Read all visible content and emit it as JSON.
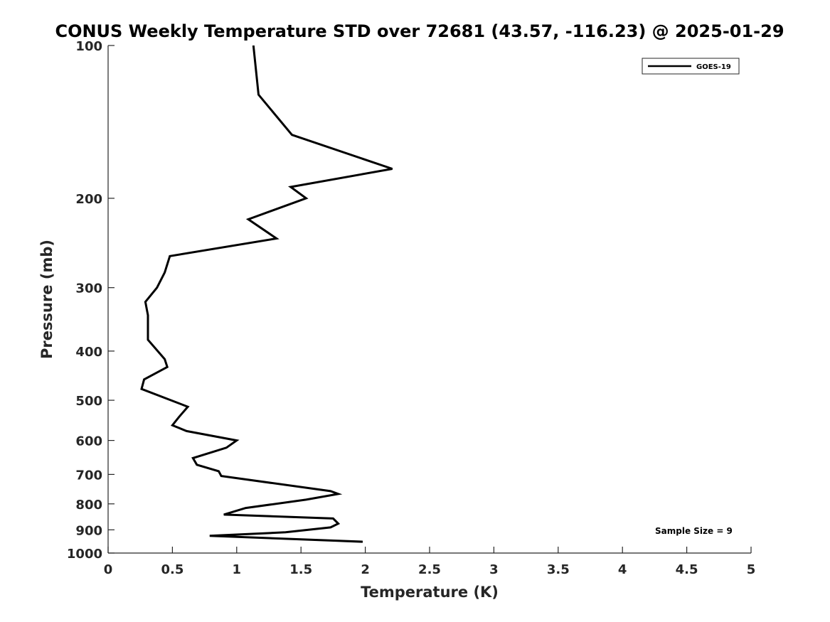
{
  "chart_data": {
    "type": "line",
    "title": "CONUS Weekly Temperature STD over 72681 (43.57, -116.23) @ 2025-01-29",
    "xlabel": "Temperature (K)",
    "ylabel": "Pressure (mb)",
    "xlim": [
      0,
      5
    ],
    "ylim": [
      100,
      1000
    ],
    "y_scale": "log",
    "y_reversed": true,
    "xticks": [
      "0",
      "0.5",
      "1",
      "1.5",
      "2",
      "2.5",
      "3",
      "3.5",
      "4",
      "4.5",
      "5"
    ],
    "yticks": [
      "100",
      "200",
      "300",
      "400",
      "500",
      "600",
      "700",
      "800",
      "900",
      "1000"
    ],
    "grid": false,
    "legend": {
      "position": "top-right",
      "entries": [
        "GOES-19"
      ]
    },
    "annotation": "Sample Size = 9",
    "series": [
      {
        "name": "GOES-19",
        "color": "#000000",
        "points": [
          [
            1.13,
            100
          ],
          [
            1.17,
            125
          ],
          [
            1.43,
            150
          ],
          [
            2.21,
            175
          ],
          [
            1.42,
            190
          ],
          [
            1.54,
            200
          ],
          [
            1.09,
            220
          ],
          [
            1.31,
            240
          ],
          [
            0.48,
            260
          ],
          [
            0.44,
            280
          ],
          [
            0.38,
            300
          ],
          [
            0.29,
            320
          ],
          [
            0.31,
            340
          ],
          [
            0.31,
            380
          ],
          [
            0.44,
            415
          ],
          [
            0.46,
            430
          ],
          [
            0.28,
            455
          ],
          [
            0.26,
            475
          ],
          [
            0.62,
            515
          ],
          [
            0.55,
            540
          ],
          [
            0.5,
            560
          ],
          [
            0.61,
            575
          ],
          [
            1.0,
            600
          ],
          [
            0.92,
            620
          ],
          [
            0.66,
            650
          ],
          [
            0.69,
            670
          ],
          [
            0.86,
            690
          ],
          [
            0.88,
            705
          ],
          [
            1.73,
            755
          ],
          [
            1.79,
            765
          ],
          [
            1.54,
            785
          ],
          [
            1.07,
            815
          ],
          [
            0.9,
            840
          ],
          [
            1.75,
            855
          ],
          [
            1.79,
            875
          ],
          [
            1.73,
            890
          ],
          [
            1.38,
            910
          ],
          [
            0.79,
            925
          ],
          [
            1.98,
            950
          ]
        ]
      }
    ]
  }
}
